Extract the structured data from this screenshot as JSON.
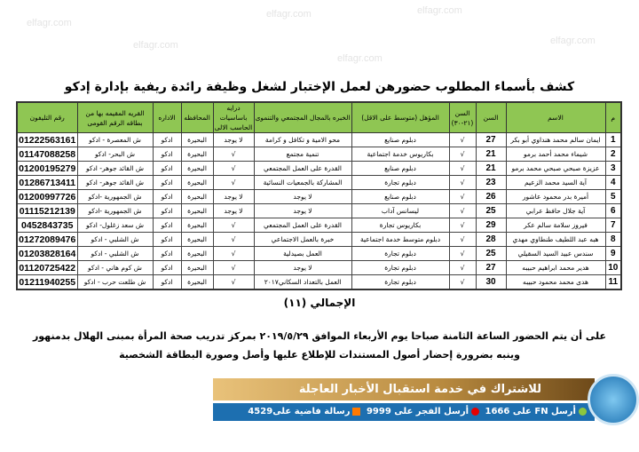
{
  "watermark": "elfagr.com",
  "title": "كشف بأسماء المطلوب حضورهن لعمل الإختبار لشغل وظيفة رائدة ريفية بإدارة إدكو",
  "columns": [
    "م",
    "الاسم",
    "السن",
    "السن (٢١-٣٠)",
    "المؤهل (متوسط على الاقل)",
    "الخبره بالمجال المجتمعي والتنموى",
    "درايه باساسيات الحاسب الالى",
    "المحافظه",
    "الاداره",
    "القريه المقيمه بها من بطاقه الرقم القومى",
    "رقم التليفون"
  ],
  "rows": [
    [
      "1",
      "ايمان سالم محمد هنداوي أبو بكر",
      "27",
      "√",
      "دبلوم صنايع",
      "محو الامية و تكافل و كرامة",
      "لا يوجد",
      "البحيرة",
      "ادكو",
      "ش المعصرة - ادكو",
      "01222563161"
    ],
    [
      "2",
      "شيماء محمد أحمد برمو",
      "21",
      "√",
      "بكاريوس خدمة اجتماعية",
      "تنمية مجتمع",
      "√",
      "البحيرة",
      "ادكو",
      "ش البحر- ادكو",
      "01147088258"
    ],
    [
      "3",
      "عزيزة صبحي صبحي محمد برمو",
      "21",
      "√",
      "دبلوم صنايع",
      "القدرة على العمل المجتمعي",
      "√",
      "البحيرة",
      "ادكو",
      "ش القائد جوهر- ادكو",
      "01200195279"
    ],
    [
      "4",
      "آية السيد محمد الزعيم",
      "23",
      "√",
      "دبلوم تجارة",
      "المشاركة بالجمعيات النسائية",
      "√",
      "البحيرة",
      "ادكو",
      "ش القائد جوهر- ادكو",
      "01286713411"
    ],
    [
      "5",
      "أميرة بدر محمود عاشور",
      "26",
      "√",
      "دبلوم صنايع",
      "لا يوجد",
      "لا يوجد",
      "البحيرة",
      "ادكو",
      "ش الجمهورية -ادكو",
      "01200997726"
    ],
    [
      "6",
      "آية جلال حافظ عرابي",
      "25",
      "√",
      "ليسانس آداب",
      "لا يوجد",
      "لا يوجد",
      "البحيرة",
      "ادكو",
      "ش الجمهورية -ادكو",
      "01115212139"
    ],
    [
      "7",
      "فيروز سلامة سالم عكر",
      "29",
      "√",
      "بكاريوس تجارة",
      "القدرة على العمل المجتمعي",
      "√",
      "البحيرة",
      "ادكو",
      "ش سعد زغلول- ادكو",
      "0452843735"
    ],
    [
      "8",
      "هبه عبد اللطيف طنطاوي مهدي",
      "28",
      "√",
      "دبلوم متوسط خدمة اجتماعية",
      "خبرة بالعمل الاجتماعي",
      "√",
      "البحيرة",
      "ادكو",
      "ش الشلبي - ادكو",
      "01272089476"
    ],
    [
      "9",
      "سندس عبيد السيد السقيلي",
      "25",
      "√",
      "دبلوم تجارة",
      "العمل بصيدلية",
      "√",
      "البحيرة",
      "ادكو",
      "ش الشلبي - ادكو",
      "01203828164"
    ],
    [
      "10",
      "هدير محمد ابراهيم حبيبه",
      "27",
      "√",
      "دبلوم تجارة",
      "لا يوجد",
      "√",
      "البحيرة",
      "ادكو",
      "ش كوم هاني - ادكو",
      "01120725422"
    ],
    [
      "11",
      "هدى محمد محمود حبيبه",
      "30",
      "√",
      "دبلوم تجارة",
      "العمل بالتعداد السكاني٢٠١٧",
      "√",
      "البحيرة",
      "ادكو",
      "ش طلعت حرب - ادكو",
      "01211940255"
    ]
  ],
  "total": "الإجمالي (١١)",
  "paragraph": [
    "على أن يتم الحضور الساعة الثامنة صباحا يوم الأربعاء الموافق ٢٠١٩/٥/٢٩ بمركز تدريب صحة المرأة بمبنى الهلال بدمنهور",
    "وينبه بضرورة إحضار أصول المستندات للإطلاع عليها وأصل وصورة البطاقة الشخصية"
  ],
  "banner": {
    "headline": "للاشتراك في خدمة استقبال الأخبار العاجلة",
    "sms1": "أرسل FN على 1666",
    "sms2": "أرسل الفجر على 9999",
    "sms3": "رسالة فاضية على4529",
    "logo": "الفجر",
    "colors": {
      "etisalat": "#8cc63f",
      "vodafone": "#e60000",
      "orange": "#ff7900"
    }
  }
}
